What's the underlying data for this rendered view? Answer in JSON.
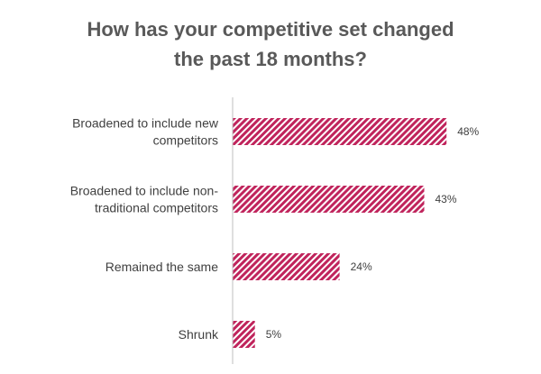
{
  "chart_data": {
    "type": "bar",
    "orientation": "horizontal",
    "title_lines": [
      "How has your competitive set changed",
      "the past 18 months?"
    ],
    "categories": [
      [
        "Broadened to include new",
        "competitors"
      ],
      [
        "Broadened to include non-",
        "traditional competitors"
      ],
      [
        "Remained the same"
      ],
      [
        "Shrunk"
      ]
    ],
    "values": [
      48,
      43,
      24,
      5
    ],
    "value_labels": [
      "48%",
      "43%",
      "24%",
      "5%"
    ],
    "xlim": [
      0,
      69
    ],
    "grid": false,
    "legend": "none",
    "bar_color": "#c0245c",
    "bar_fill": "diagonal-hatch",
    "text_color": "#404040",
    "title_color": "#595959",
    "axis_color": "#bfbfbf"
  }
}
